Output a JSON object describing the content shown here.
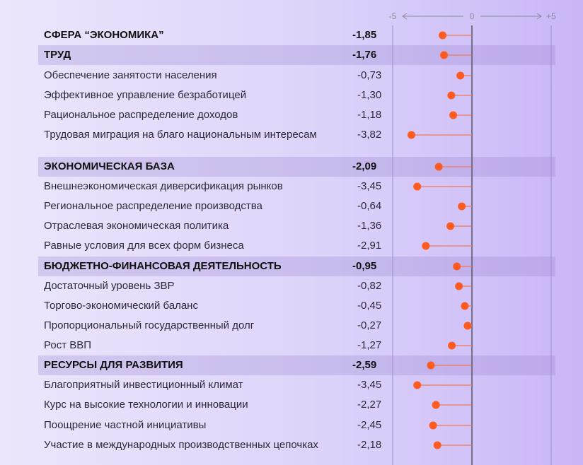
{
  "chart_data": {
    "type": "lollipop",
    "xlim": [
      -5,
      5
    ],
    "x_ticks": [
      "-5",
      "0",
      "+5"
    ],
    "grid": false,
    "rows": [
      {
        "label": "СФЕРА “ЭКОНОМИКА”",
        "value_text": "-1,85",
        "value": -1.85,
        "level": "sphere"
      },
      {
        "label": "ТРУД",
        "value_text": "-1,76",
        "value": -1.76,
        "level": "group"
      },
      {
        "label": "Обеспечение занятости населения",
        "value_text": "-0,73",
        "value": -0.73,
        "level": "item"
      },
      {
        "label": "Эффективное управление безработицей",
        "value_text": "-1,30",
        "value": -1.3,
        "level": "item"
      },
      {
        "label": "Рациональное распределение доходов",
        "value_text": "-1,18",
        "value": -1.18,
        "level": "item"
      },
      {
        "label": "Трудовая миграция на благо национальным интересам",
        "value_text": "-3,82",
        "value": -3.82,
        "level": "item"
      },
      {
        "label": "ЭКОНОМИЧЕСКАЯ БАЗА",
        "value_text": "-2,09",
        "value": -2.09,
        "level": "group"
      },
      {
        "label": "Внешнеэкономическая диверсификация рынков",
        "value_text": "-3,45",
        "value": -3.45,
        "level": "item"
      },
      {
        "label": "Региональное распределение производства",
        "value_text": "-0,64",
        "value": -0.64,
        "level": "item"
      },
      {
        "label": "Отраслевая экономическая политика",
        "value_text": "-1,36",
        "value": -1.36,
        "level": "item"
      },
      {
        "label": "Равные условия для всех форм бизнеса",
        "value_text": "-2,91",
        "value": -2.91,
        "level": "item"
      },
      {
        "label": "БЮДЖЕТНО-ФИНАНСОВАЯ ДЕЯТЕЛЬНОСТЬ",
        "value_text": "-0,95",
        "value": -0.95,
        "level": "group"
      },
      {
        "label": "Достаточный уровень ЗВР",
        "value_text": "-0,82",
        "value": -0.82,
        "level": "item"
      },
      {
        "label": "Торгово-экономический баланс",
        "value_text": "-0,45",
        "value": -0.45,
        "level": "item"
      },
      {
        "label": "Пропорциональный государственный долг",
        "value_text": "-0,27",
        "value": -0.27,
        "level": "item"
      },
      {
        "label": "Рост ВВП",
        "value_text": "-1,27",
        "value": -1.27,
        "level": "item"
      },
      {
        "label": "РЕСУРСЫ ДЛЯ РАЗВИТИЯ",
        "value_text": "-2,59",
        "value": -2.59,
        "level": "group"
      },
      {
        "label": "Благоприятный инвестиционный климат",
        "value_text": "-3,45",
        "value": -3.45,
        "level": "item"
      },
      {
        "label": "Курс на высокие технологии и инновации",
        "value_text": "-2,27",
        "value": -2.27,
        "level": "item"
      },
      {
        "label": "Поощрение частной инициативы",
        "value_text": "-2,45",
        "value": -2.45,
        "level": "item"
      },
      {
        "label": "Участие в международных производственных цепочках",
        "value_text": "-2,18",
        "value": -2.18,
        "level": "item"
      }
    ]
  },
  "colors": {
    "dot": "#ff5a1f",
    "stem": "#f07a55",
    "axis": "#555566",
    "frame": "#9d8ccf",
    "tick": "#8a8a9a"
  }
}
